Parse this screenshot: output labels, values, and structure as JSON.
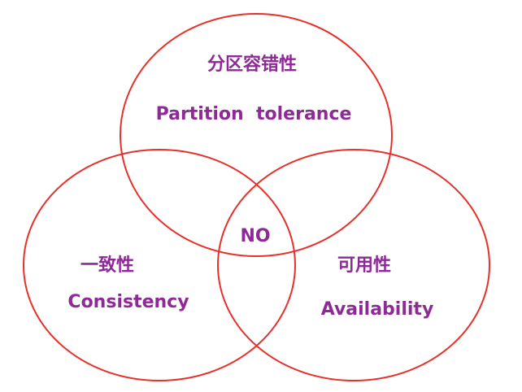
{
  "colors": {
    "circle_stroke": "#e8302a",
    "text": "#8e2a96",
    "background": "#ffffff"
  },
  "partition": {
    "cn": "分区容错性",
    "en": "Partition  tolerance"
  },
  "consistency": {
    "cn": "一致性",
    "en": "Consistency"
  },
  "availability": {
    "cn": "可用性",
    "en": "Availability"
  },
  "intersection": {
    "label": "NO"
  }
}
